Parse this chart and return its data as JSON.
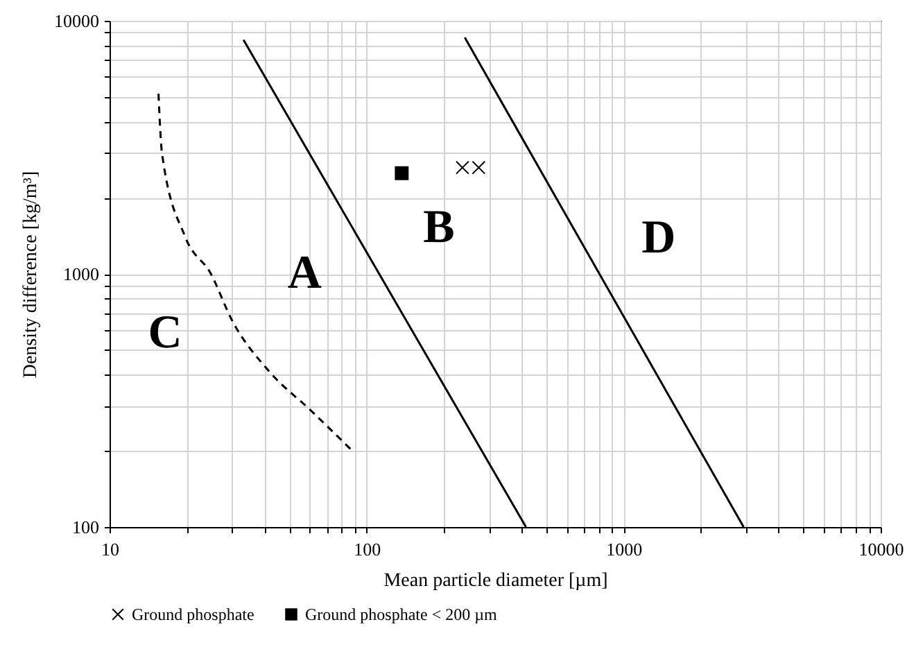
{
  "chart_data": {
    "type": "line",
    "xlabel": "Mean particle diameter [µm]",
    "ylabel": "Density difference [kg/m³]",
    "log": "xy",
    "grid": true,
    "legend": "bottom",
    "xlim": [
      10,
      10000
    ],
    "ylim": [
      100,
      10000
    ],
    "xticks": [
      10,
      {
        "value": 20,
        "label": null
      },
      {
        "value": 30,
        "label": null
      },
      {
        "value": 40,
        "label": null
      },
      {
        "value": 50,
        "label": null
      },
      {
        "value": 60,
        "label": null
      },
      {
        "value": 70,
        "label": null
      },
      {
        "value": 80,
        "label": null
      },
      {
        "value": 90,
        "label": null
      },
      100,
      {
        "value": 200,
        "label": null
      },
      {
        "value": 300,
        "label": null
      },
      {
        "value": 400,
        "label": null
      },
      {
        "value": 500,
        "label": null
      },
      {
        "value": 600,
        "label": null
      },
      {
        "value": 700,
        "label": null
      },
      {
        "value": 800,
        "label": null
      },
      {
        "value": 900,
        "label": null
      },
      1000,
      {
        "value": 2000,
        "label": null
      },
      {
        "value": 3000,
        "label": null
      },
      {
        "value": 4000,
        "label": null
      },
      {
        "value": 5000,
        "label": null
      },
      {
        "value": 6000,
        "label": null
      },
      {
        "value": 7000,
        "label": null
      },
      {
        "value": 8000,
        "label": null
      },
      {
        "value": 9000,
        "label": null
      },
      10000
    ],
    "yticks": [
      100,
      {
        "value": 200,
        "label": null
      },
      {
        "value": 300,
        "label": null
      },
      {
        "value": 400,
        "label": null
      },
      {
        "value": 500,
        "label": null
      },
      {
        "value": 600,
        "label": null
      },
      {
        "value": 700,
        "label": null
      },
      {
        "value": 800,
        "label": null
      },
      {
        "value": 900,
        "label": null
      },
      1000,
      {
        "value": 2000,
        "label": null
      },
      {
        "value": 3000,
        "label": null
      },
      {
        "value": 4000,
        "label": null
      },
      {
        "value": 5000,
        "label": null
      },
      {
        "value": 6000,
        "label": null
      },
      {
        "value": 7000,
        "label": null
      },
      {
        "value": 8000,
        "label": null
      },
      {
        "value": 9000,
        "label": null
      },
      10000
    ],
    "series": [
      {
        "type": "line",
        "color": "#000000",
        "line_style": "solid",
        "marker": "none",
        "x": [
          33.2,
          417
        ],
        "values": [
          8410,
          100
        ]
      },
      {
        "type": "line",
        "color": "#000000",
        "line_style": "solid",
        "marker": "none",
        "x": [
          241,
          2930
        ],
        "values": [
          8590,
          100
        ]
      },
      {
        "type": "line",
        "color": "#000000",
        "line_style": "dashed",
        "marker": "none",
        "x": [
          15.5,
          16.0,
          19.7,
          24.8,
          29.9,
          41.6,
          60.4,
          88
        ],
        "values": [
          5150,
          2990,
          1400,
          1000,
          658,
          414,
          290,
          200
        ]
      },
      {
        "type": "scatter",
        "name": "Ground phosphate",
        "color": "#000000",
        "marker": "cross",
        "x": [
          236,
          273
        ],
        "values": [
          2630,
          2630
        ]
      },
      {
        "type": "scatter",
        "name": "Ground phosphate < 200 µm",
        "color": "#000000",
        "marker": "square",
        "x": [
          137
        ],
        "values": [
          2500
        ]
      }
    ],
    "annotations": [
      "A",
      "B",
      "C",
      "D"
    ]
  }
}
